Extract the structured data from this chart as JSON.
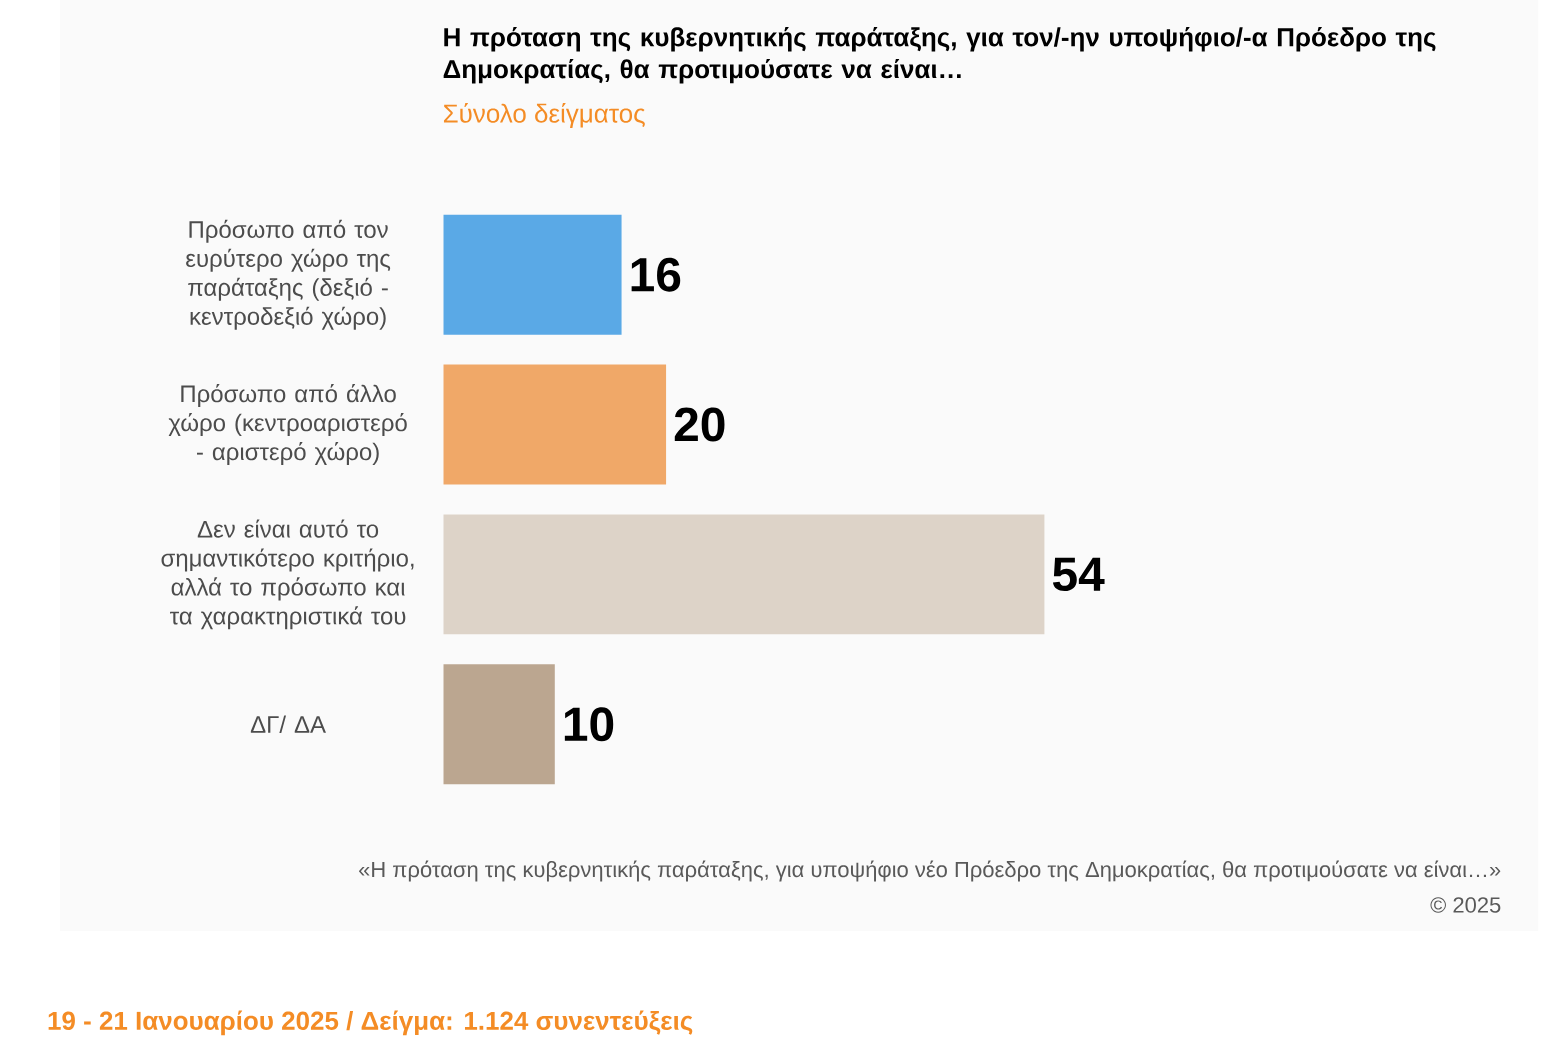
{
  "chart_data": {
    "type": "bar",
    "orientation": "horizontal",
    "title": "Η πρόταση της κυβερνητικής παράταξης, για τον/-ην υποψήφιο/-α Πρόεδρο της Δημοκρατίας, θα προτιμούσατε να είναι…",
    "subtitle": "Σύνολο δείγματος",
    "categories": [
      "Πρόσωπο από τον ευρύτερο χώρο της παράταξης (δεξιό - κεντροδεξιό χώρο)",
      "Πρόσωπο από άλλο χώρο (κεντροαριστερό - αριστερό χώρο)",
      "Δεν είναι αυτό το σημαντικότερο κριτήριο, αλλά το πρόσωπο και τα χαρακτηριστικά του",
      "ΔΓ/ ΔΑ"
    ],
    "values": [
      16,
      20,
      54,
      10
    ],
    "colors": [
      "#5aa9e6",
      "#f0a868",
      "#ddd3c8",
      "#bba690"
    ],
    "data_labels": true,
    "annotations": [
      "«Η πρόταση της κυβερνητικής παράταξης, για υποψήφιο νέο Πρόεδρο της Δημοκρατίας, θα προτιμούσατε να είναι…»",
      "©  2025",
      "19 - 21 Ιανουαρίου 2025  /  Δείγμα:  1.124 συνεντεύξεις"
    ]
  }
}
